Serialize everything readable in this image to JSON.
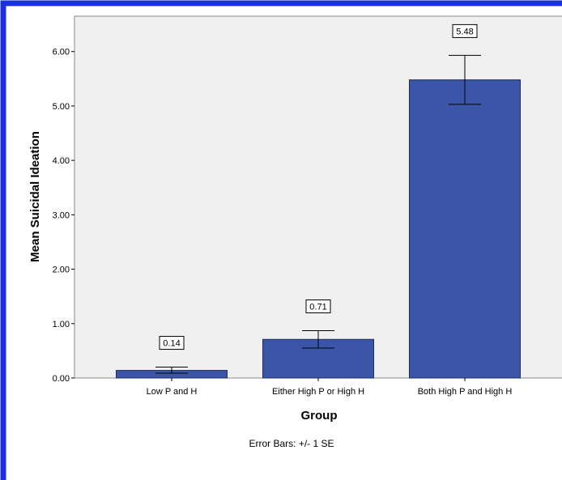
{
  "chart_data": {
    "type": "bar",
    "categories": [
      "Low P and H",
      "Either High P or High H",
      "Both High P and High H"
    ],
    "values": [
      0.14,
      0.71,
      5.48
    ],
    "data_labels": [
      "0.14",
      "0.71",
      "5.48"
    ],
    "error_bars": [
      {
        "low": 0.09,
        "high": 0.2
      },
      {
        "low": 0.55,
        "high": 0.87
      },
      {
        "low": 5.03,
        "high": 5.93
      }
    ],
    "yticks": [
      "0.00",
      "1.00",
      "2.00",
      "3.00",
      "4.00",
      "5.00",
      "6.00"
    ],
    "ylim": [
      0,
      6.65
    ],
    "xlabel": "Group",
    "ylabel": "Mean Suicidal Ideation",
    "note": "Error Bars: +/- 1 SE",
    "grid": false,
    "colors": {
      "bar": "#3b56a8",
      "plot_bg": "#f0f0f0",
      "frame_border": "#1a2fe0"
    }
  }
}
